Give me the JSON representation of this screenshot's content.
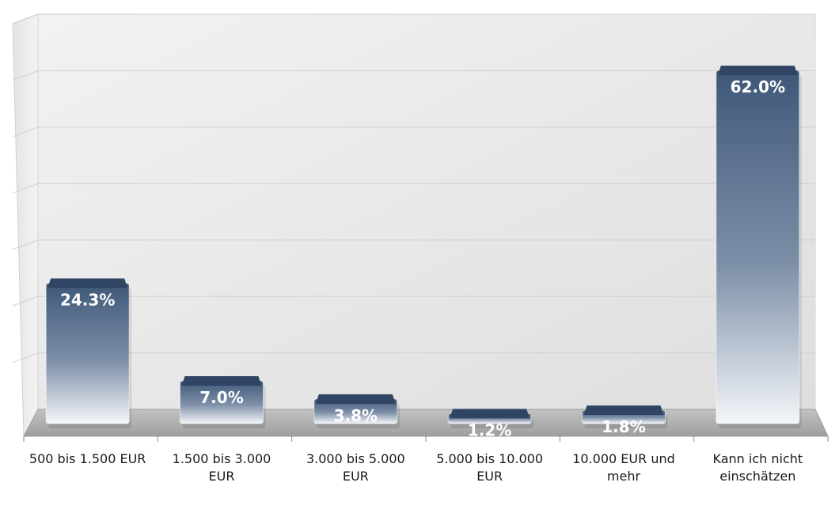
{
  "chart_data": {
    "type": "bar",
    "categories": [
      [
        "500 bis 1.500 EUR"
      ],
      [
        "1.500 bis 3.000",
        "EUR"
      ],
      [
        "3.000 bis 5.000",
        "EUR"
      ],
      [
        "5.000 bis 10.000",
        "EUR"
      ],
      [
        "10.000 EUR und",
        "mehr"
      ],
      [
        "Kann ich nicht",
        "einschätzen"
      ]
    ],
    "values": [
      24.3,
      7.0,
      3.8,
      1.2,
      1.8,
      62.0
    ],
    "value_labels": [
      "24.3%",
      "7.0%",
      "3.8%",
      "1.2%",
      "1.8%",
      "62.0%"
    ],
    "ylim": [
      0,
      70
    ],
    "grid": true,
    "style": "3d",
    "colors": {
      "bar_top": "#3f5878",
      "bar_mid": "#7d8fa8",
      "bar_bottom": "#f4f6f9",
      "bar_cap": "#2f4563",
      "floor": "#a9a9a9",
      "wall": "#e6e6e6"
    }
  }
}
